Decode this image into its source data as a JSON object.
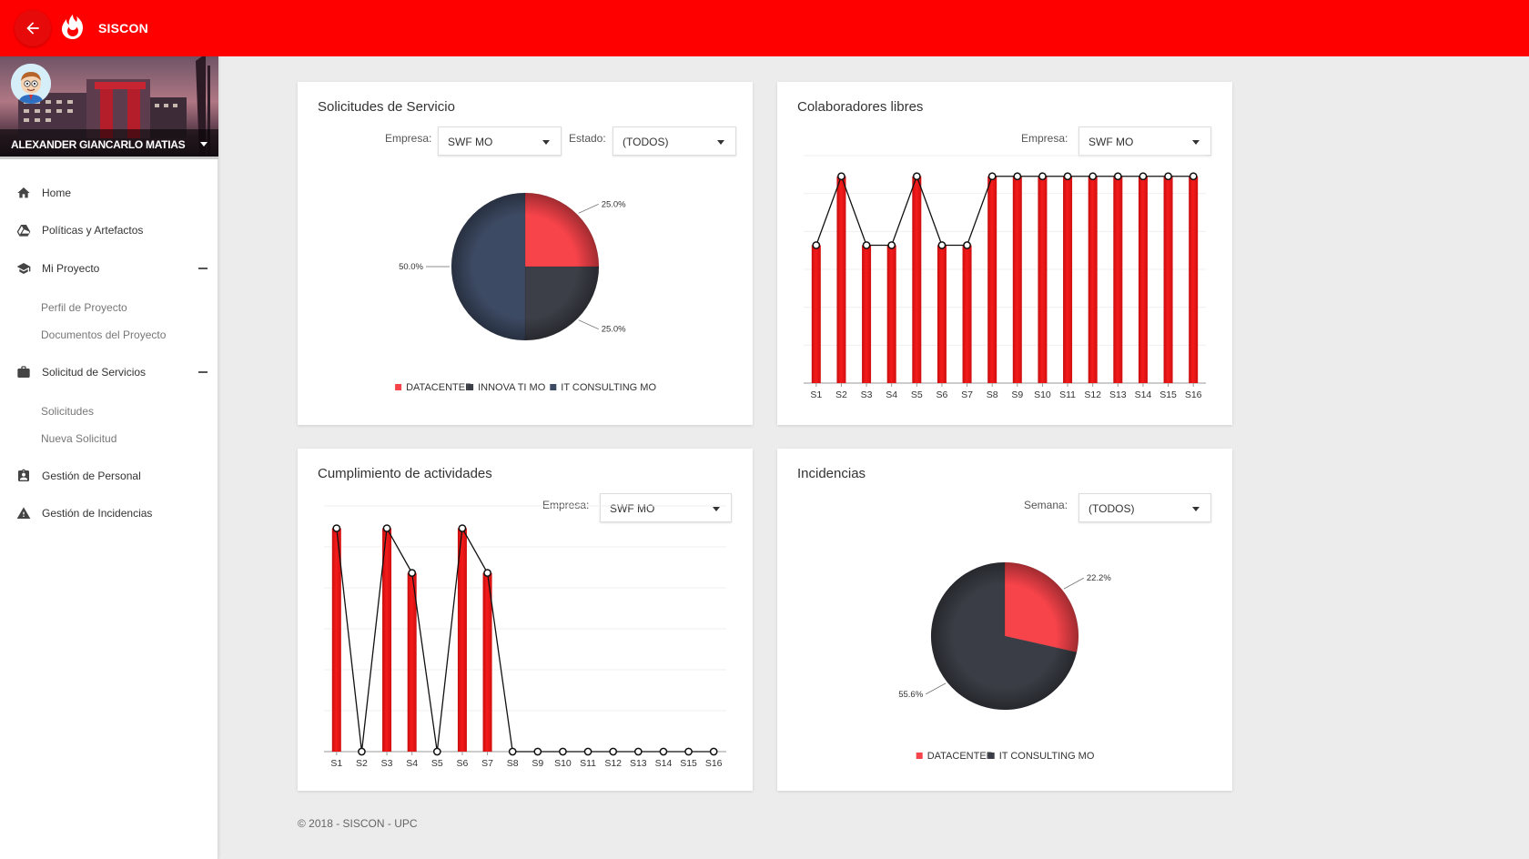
{
  "app": {
    "title": "SISCON"
  },
  "user": {
    "name": "ALEXANDER GIANCARLO MATIAS"
  },
  "sidebar": {
    "items": [
      {
        "label": "Home",
        "icon": "home-icon"
      },
      {
        "label": "Políticas y Artefactos",
        "icon": "drive-icon"
      },
      {
        "label": "Mi Proyecto",
        "icon": "graduation-cap-icon",
        "expanded": true,
        "children": [
          "Perfil de Proyecto",
          "Documentos del Proyecto"
        ]
      },
      {
        "label": "Solicitud de Servicios",
        "icon": "briefcase-icon",
        "expanded": true,
        "children": [
          "Solicitudes",
          "Nueva Solicitud"
        ]
      },
      {
        "label": "Gestión de Personal",
        "icon": "clipboard-person-icon"
      },
      {
        "label": "Gestión de Incidencias",
        "icon": "warning-icon"
      }
    ]
  },
  "cards": {
    "solicitudes": {
      "title": "Solicitudes de Servicio",
      "empresa_label": "Empresa:",
      "empresa_value": "SWF MO",
      "estado_label": "Estado:",
      "estado_value": "(TODOS)"
    },
    "colaboradores": {
      "title": "Colaboradores libres",
      "empresa_label": "Empresa:",
      "empresa_value": "SWF MO"
    },
    "cumplimiento": {
      "title": "Cumplimiento de actividades",
      "empresa_label": "Empresa:",
      "empresa_value": "SWF MO"
    },
    "incidencias": {
      "title": "Incidencias",
      "semana_label": "Semana:",
      "semana_value": "(TODOS)"
    }
  },
  "chart_data": [
    {
      "id": "solicitudes-pie",
      "type": "pie",
      "slices": [
        {
          "name": "DATACENTER",
          "value": 25.0,
          "label": "25.0%",
          "color": "#f7434a"
        },
        {
          "name": "INNOVA TI MO",
          "value": 25.0,
          "label": "25.0%",
          "color": "#3d3f48"
        },
        {
          "name": "IT CONSULTING MO",
          "value": 50.0,
          "label": "50.0%",
          "color": "#3d4a63"
        }
      ],
      "legend": "bottom"
    },
    {
      "id": "colaboradores-combo",
      "type": "bar",
      "categories": [
        "S1",
        "S2",
        "S3",
        "S4",
        "S5",
        "S6",
        "S7",
        "S8",
        "S9",
        "S10",
        "S11",
        "S12",
        "S13",
        "S14",
        "S15",
        "S16"
      ],
      "values": [
        2,
        3,
        2,
        2,
        3,
        2,
        2,
        3,
        3,
        3,
        3,
        3,
        3,
        3,
        3,
        3
      ],
      "ylim": [
        0,
        3.3
      ],
      "overlay": "line",
      "grid": true,
      "bar_color": "#f51b1b"
    },
    {
      "id": "cumplimiento-combo",
      "type": "bar",
      "categories": [
        "S1",
        "S2",
        "S3",
        "S4",
        "S5",
        "S6",
        "S7",
        "S8",
        "S9",
        "S10",
        "S11",
        "S12",
        "S13",
        "S14",
        "S15",
        "S16"
      ],
      "values": [
        5,
        0,
        5,
        4,
        0,
        5,
        4,
        0,
        0,
        0,
        0,
        0,
        0,
        0,
        0,
        0
      ],
      "ylim": [
        0,
        5.5
      ],
      "overlay": "line",
      "grid": true,
      "bar_color": "#f51b1b"
    },
    {
      "id": "incidencias-pie",
      "type": "pie",
      "slices": [
        {
          "name": "DATACENTER",
          "value": 22.2,
          "label": "22.2%",
          "color": "#f7434a"
        },
        {
          "name": "IT CONSULTING MO",
          "value": 55.6,
          "label": "55.6%",
          "color": "#3a3d45"
        }
      ],
      "legend": "bottom"
    }
  ],
  "footer": {
    "text": "© 2018 - SISCON - UPC"
  }
}
